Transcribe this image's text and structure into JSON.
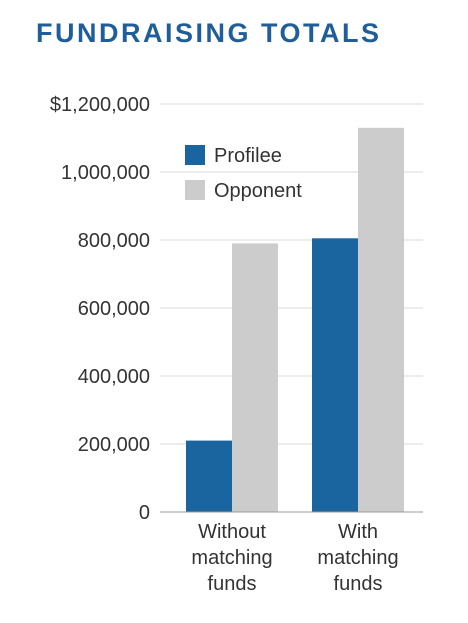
{
  "title": "FUNDRAISING TOTALS",
  "colors": {
    "title": "#1f5e99",
    "profilee": "#1a64a0",
    "opponent": "#cccccc",
    "grid": "#d9d9d9",
    "axis": "#999999"
  },
  "chart_data": {
    "type": "bar",
    "title": "FUNDRAISING TOTALS",
    "categories": [
      [
        "Without",
        "matching",
        "funds"
      ],
      [
        "With",
        "matching",
        "funds"
      ]
    ],
    "series": [
      {
        "name": "Profilee",
        "color": "#1a64a0",
        "values": [
          210000,
          805000
        ]
      },
      {
        "name": "Opponent",
        "color": "#cccccc",
        "values": [
          790000,
          1130000
        ]
      }
    ],
    "ylim": [
      0,
      1200000
    ],
    "yticks": [
      0,
      200000,
      400000,
      600000,
      800000,
      1000000,
      1200000
    ],
    "ytick_labels": [
      "0",
      "200,000",
      "400,000",
      "600,000",
      "800,000",
      "1,000,000",
      "$1,200,000"
    ],
    "grid": true,
    "legend_position": "top-left inside plot",
    "xlabel": "",
    "ylabel": ""
  }
}
